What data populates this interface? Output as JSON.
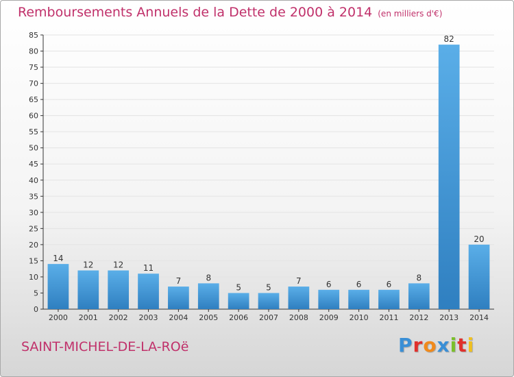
{
  "title": "Remboursements Annuels de la Dette de 2000 à 2014",
  "title_unit": "(en milliers d'€)",
  "city": "SAINT-MICHEL-DE-LA-ROë",
  "logo": {
    "text": "Proxiti",
    "letter_colors": [
      "#3a8fd6",
      "#e0302c",
      "#f08a1c",
      "#3a8fd6",
      "#7bbf2a",
      "#e0302c",
      "#f0c020"
    ]
  },
  "colors": {
    "bar_top": "#5aaee8",
    "bar_bottom": "#2f7fc0",
    "axis": "#333333",
    "grid": "#e3e3e3",
    "title": "#c0306a"
  },
  "chart_data": {
    "type": "bar",
    "title": "Remboursements Annuels de la Dette de 2000 à 2014",
    "ylabel": "en milliers d'€",
    "xlabel": "",
    "categories": [
      "2000",
      "2001",
      "2002",
      "2003",
      "2004",
      "2005",
      "2006",
      "2007",
      "2008",
      "2009",
      "2010",
      "2011",
      "2012",
      "2013",
      "2014"
    ],
    "values": [
      14,
      12,
      12,
      11,
      7,
      8,
      5,
      5,
      7,
      6,
      6,
      6,
      8,
      82,
      20
    ],
    "ylim": [
      0,
      85
    ],
    "yticks": [
      0,
      5,
      10,
      15,
      20,
      25,
      30,
      35,
      40,
      45,
      50,
      55,
      60,
      65,
      70,
      75,
      80,
      85
    ],
    "grid": true
  }
}
